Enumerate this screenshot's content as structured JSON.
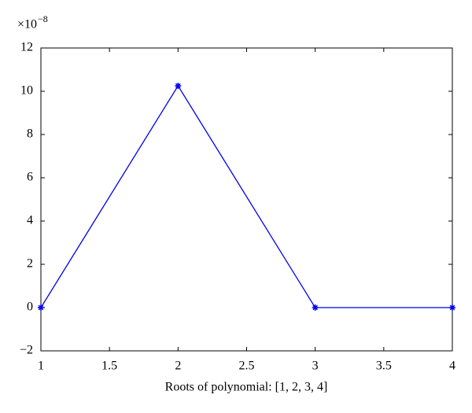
{
  "chart_data": {
    "type": "line",
    "x_label": "Roots of polynomial: [1, 2, 3, 4]",
    "y_scale_base": "×10",
    "y_scale_exponent": "−8",
    "series": [
      {
        "color": "#0000ee",
        "marker": "asterisk",
        "x": [
          1,
          2,
          3,
          4
        ],
        "values": [
          0,
          10.25,
          0,
          0
        ]
      }
    ],
    "xlim": [
      1,
      4
    ],
    "xticks": [
      1,
      1.5,
      2,
      2.5,
      3,
      3.5,
      4
    ],
    "ylim": [
      -2,
      12
    ],
    "yticks": [
      {
        "value": -2,
        "label": "−2"
      },
      0,
      2,
      4,
      6,
      8,
      10,
      12
    ],
    "grid": false
  }
}
